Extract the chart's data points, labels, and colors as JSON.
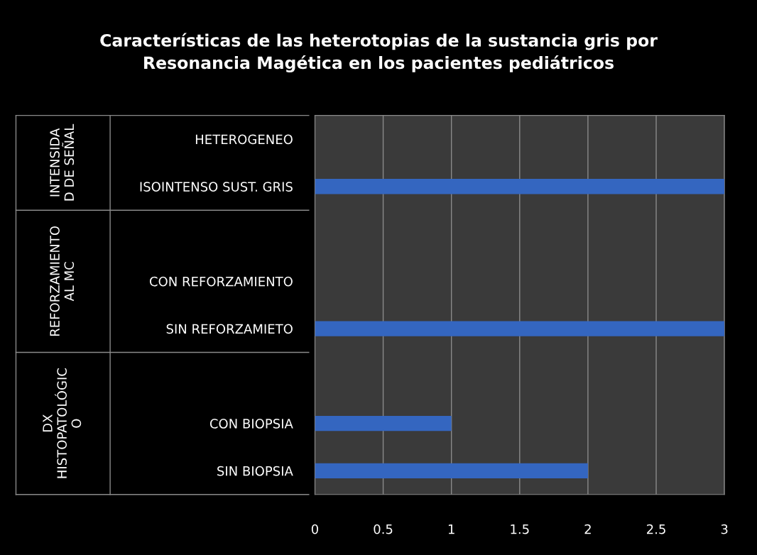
{
  "chart_data": {
    "type": "bar",
    "orientation": "horizontal",
    "title": "Características de las heterotopias de la sustancia gris por\nResonancia Magética en los pacientes pediátricos",
    "categories": [
      "HETEROGENEO",
      "ISOINTENSO SUST. GRIS",
      null,
      "CON REFORZAMIENTO",
      "SIN REFORZAMIETO",
      null,
      "CON BIOPSIA",
      "SIN BIOPSIA"
    ],
    "values": [
      0,
      3,
      null,
      0,
      3,
      null,
      1,
      2
    ],
    "color": "#3466c0",
    "xlim": [
      0,
      3
    ],
    "xticks": [
      0,
      0.5,
      1,
      1.5,
      2,
      2.5,
      3
    ],
    "grid": "x",
    "annotations": [
      "INTENSIDA\nD DE SEÑAL",
      "REFORZAMIENTO\nAL MC",
      "DX\nHISTOPATOLÓGIC\nO"
    ]
  }
}
